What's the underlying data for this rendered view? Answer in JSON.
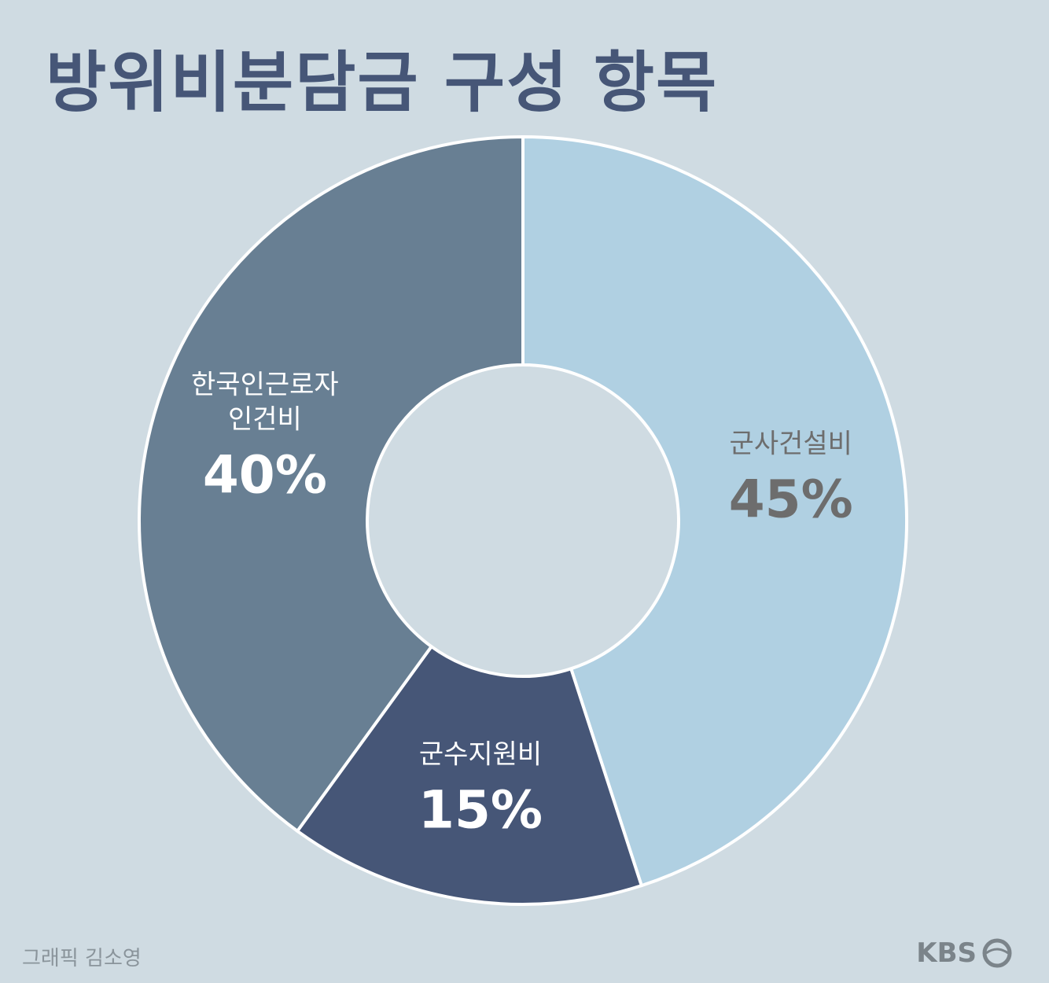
{
  "chart_data": {
    "type": "pie",
    "donut": true,
    "title": "방위비분담금 구성 항목",
    "categories": [
      "군사건설비",
      "군수지원비",
      "한국인근로자 인건비"
    ],
    "values": [
      45,
      15,
      40
    ],
    "value_labels": [
      "45%",
      "15%",
      "40%"
    ],
    "colors": [
      "#b0d0e2",
      "#465677",
      "#687f93"
    ],
    "credit": "그래픽 김소영",
    "source": "KBS"
  }
}
